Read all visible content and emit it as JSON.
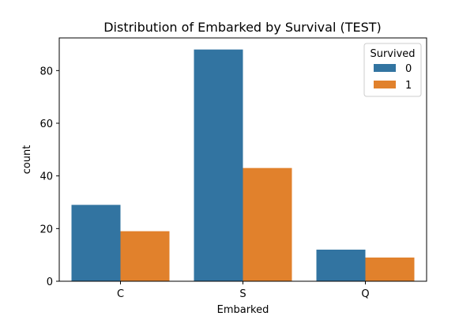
{
  "chart_data": {
    "type": "bar",
    "title": "Distribution of Embarked by Survival (TEST)",
    "xlabel": "Embarked",
    "ylabel": "count",
    "categories": [
      "C",
      "S",
      "Q"
    ],
    "series": [
      {
        "name": "0",
        "values": [
          29,
          88,
          12
        ],
        "color": "#3274a1"
      },
      {
        "name": "1",
        "values": [
          19,
          43,
          9
        ],
        "color": "#e1812c"
      }
    ],
    "ylim": [
      0,
      92.4
    ],
    "yticks": [
      0,
      20,
      40,
      60,
      80
    ],
    "legend": {
      "title": "Survived",
      "placement": "top-right"
    },
    "grid": false
  }
}
